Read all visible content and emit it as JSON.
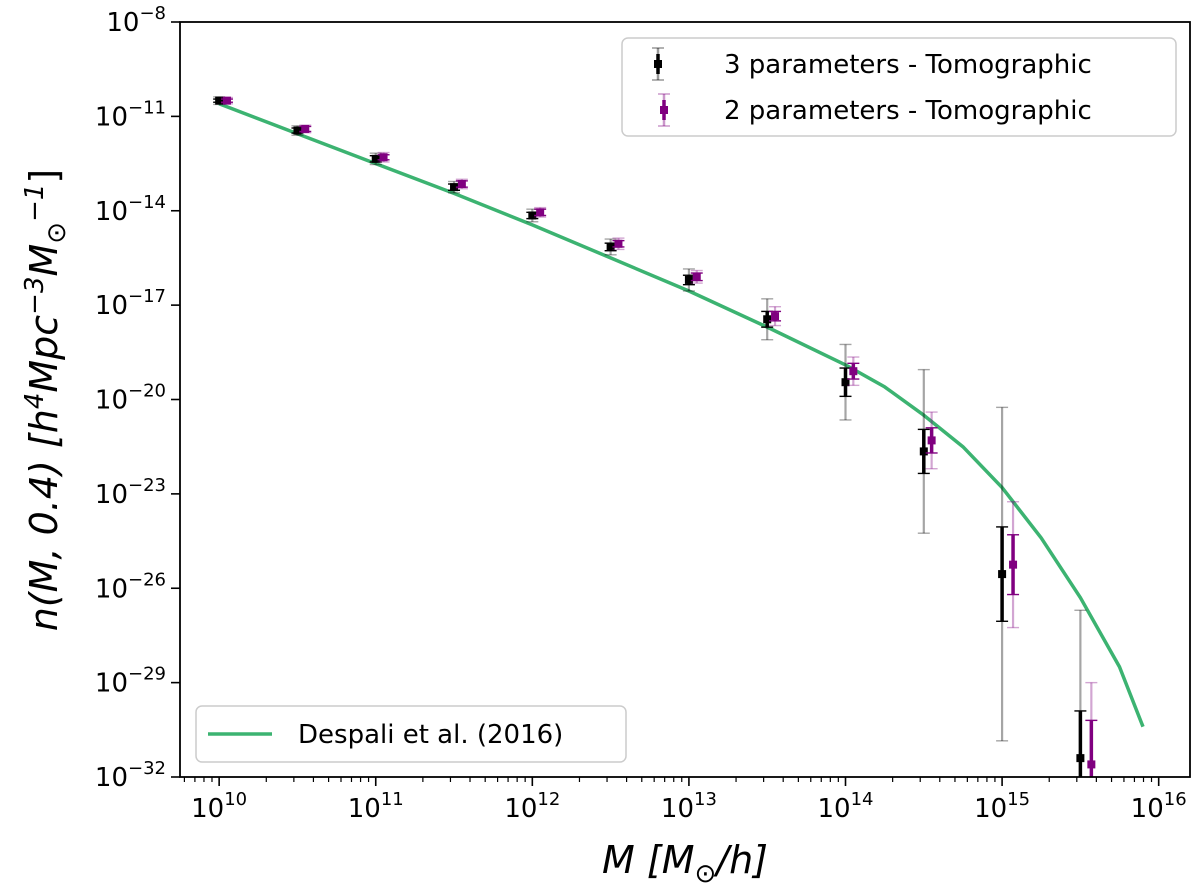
{
  "chart_data": {
    "type": "scatter",
    "xscale": "log",
    "yscale": "log",
    "xlim_exp": [
      9.75,
      16.2
    ],
    "ylim_exp": [
      -32,
      -8
    ],
    "xtick_exps": [
      10,
      11,
      12,
      13,
      14,
      15,
      16
    ],
    "ytick_exps": [
      -32,
      -29,
      -26,
      -23,
      -20,
      -17,
      -14,
      -11,
      -8
    ],
    "xlabel": {
      "main": "M [M",
      "sub": "⊙",
      "tail": "/h]"
    },
    "ylabel": {
      "pre": "n(M, 0.4) [h",
      "sup1": "4",
      "mid": "Mpc",
      "sup2": "−3",
      "m": "M",
      "sub": "⊙",
      "sup3": "−1",
      "close": "]"
    },
    "series": [
      {
        "name": "3 parameters - Tomographic",
        "color": "#000000",
        "x_exp": [
          10.0,
          10.5,
          11.0,
          11.5,
          12.0,
          12.5,
          13.0,
          13.5,
          14.0,
          14.5,
          15.0,
          15.5
        ],
        "y_exp": [
          -10.5,
          -11.45,
          -12.35,
          -13.25,
          -14.15,
          -15.15,
          -16.2,
          -17.45,
          -19.45,
          -21.65,
          -25.55,
          -31.4
        ],
        "inner_err": [
          0.05,
          0.08,
          0.1,
          0.1,
          0.1,
          0.12,
          0.15,
          0.25,
          0.45,
          0.7,
          1.5,
          1.5
        ],
        "outer_err": [
          0.12,
          0.15,
          0.18,
          0.18,
          0.2,
          0.25,
          0.35,
          0.65,
          1.2,
          2.6,
          5.3,
          4.7
        ]
      },
      {
        "name": "2 parameters - Tomographic",
        "color": "#800080",
        "x_exp": [
          10.05,
          10.55,
          11.05,
          11.55,
          12.05,
          12.55,
          13.05,
          13.55,
          14.05,
          14.55,
          15.07,
          15.57
        ],
        "y_exp": [
          -10.5,
          -11.4,
          -12.3,
          -13.15,
          -14.05,
          -15.05,
          -16.1,
          -17.35,
          -19.1,
          -21.3,
          -25.25,
          -31.6
        ],
        "inner_err": [
          0.05,
          0.08,
          0.08,
          0.1,
          0.1,
          0.1,
          0.12,
          0.15,
          0.25,
          0.4,
          0.95,
          1.4
        ],
        "outer_err": [
          0.1,
          0.12,
          0.15,
          0.15,
          0.15,
          0.18,
          0.2,
          0.3,
          0.45,
          0.9,
          2.0,
          2.6
        ]
      }
    ],
    "line": {
      "name": "Despali et al. (2016)",
      "color": "#3cb371",
      "x_exp": [
        10.0,
        10.5,
        11.0,
        11.5,
        12.0,
        12.5,
        13.0,
        13.5,
        14.0,
        14.25,
        14.5,
        14.75,
        15.0,
        15.25,
        15.5,
        15.75,
        15.9
      ],
      "y_exp": [
        -10.6,
        -11.55,
        -12.5,
        -13.45,
        -14.45,
        -15.5,
        -16.55,
        -17.7,
        -18.9,
        -19.6,
        -20.5,
        -21.5,
        -22.8,
        -24.4,
        -26.3,
        -28.5,
        -30.4
      ]
    },
    "legend_top": {
      "position": "top-right",
      "items": [
        "3 parameters - Tomographic",
        "2 parameters - Tomographic"
      ]
    },
    "legend_bottom": {
      "position": "bottom-left",
      "items": [
        "Despali et al. (2016)"
      ]
    }
  }
}
